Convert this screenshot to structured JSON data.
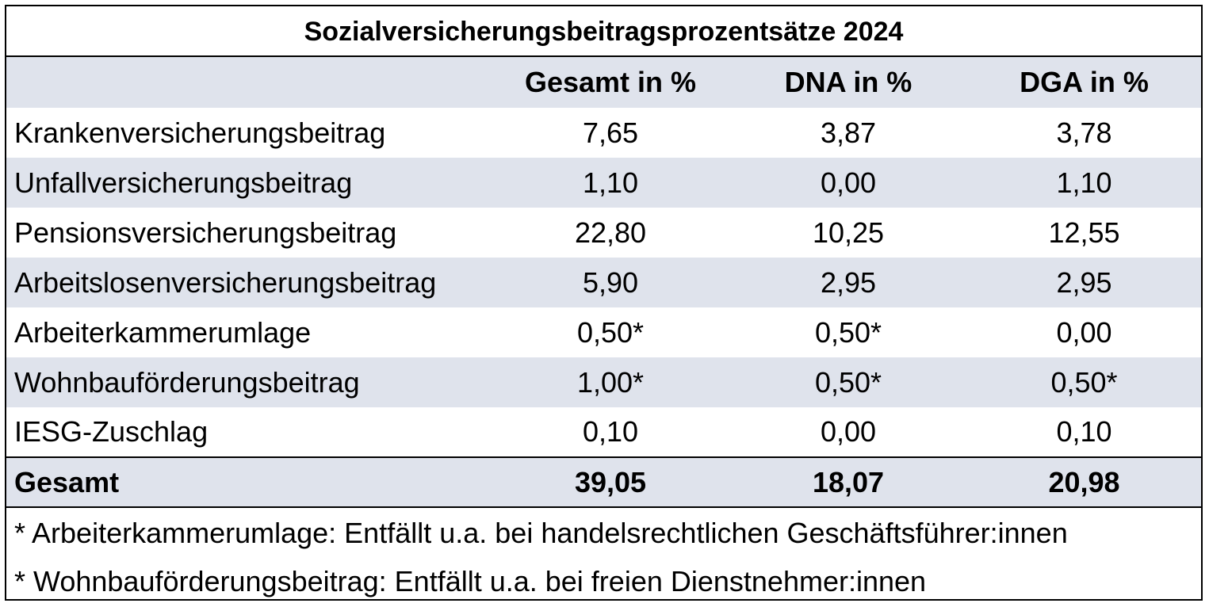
{
  "title": "Sozialversicherungsbeitragsprozentsätze 2024",
  "columns": [
    "",
    "Gesamt in %",
    "DNA in %",
    "DGA in %"
  ],
  "rows": [
    {
      "label": "Krankenversicherungsbeitrag",
      "gesamt": "7,65",
      "dna": "3,87",
      "dga": "3,78"
    },
    {
      "label": "Unfallversicherungsbeitrag",
      "gesamt": "1,10",
      "dna": "0,00",
      "dga": "1,10"
    },
    {
      "label": "Pensionsversicherungsbeitrag",
      "gesamt": "22,80",
      "dna": "10,25",
      "dga": "12,55"
    },
    {
      "label": "Arbeitslosenversicherungsbeitrag",
      "gesamt": "5,90",
      "dna": "2,95",
      "dga": "2,95"
    },
    {
      "label": "Arbeiterkammerumlage",
      "gesamt": "0,50*",
      "dna": "0,50*",
      "dga": "0,00"
    },
    {
      "label": "Wohnbauförderungsbeitrag",
      "gesamt": "1,00*",
      "dna": "0,50*",
      "dga": "0,50*"
    },
    {
      "label": "IESG-Zuschlag",
      "gesamt": "0,10",
      "dna": "0,00",
      "dga": "0,10"
    }
  ],
  "total": {
    "label": "Gesamt",
    "gesamt": "39,05",
    "dna": "18,07",
    "dga": "20,98"
  },
  "notes": [
    "* Arbeiterkammerumlage: Entfällt u.a. bei handelsrechtlichen Geschäftsführer:innen",
    "* Wohnbauförderungsbeitrag: Entfällt u.a. bei freien Dienstnehmer:innen"
  ],
  "colors": {
    "shade": "#dfe3ec",
    "border": "#000000",
    "text": "#000000"
  }
}
